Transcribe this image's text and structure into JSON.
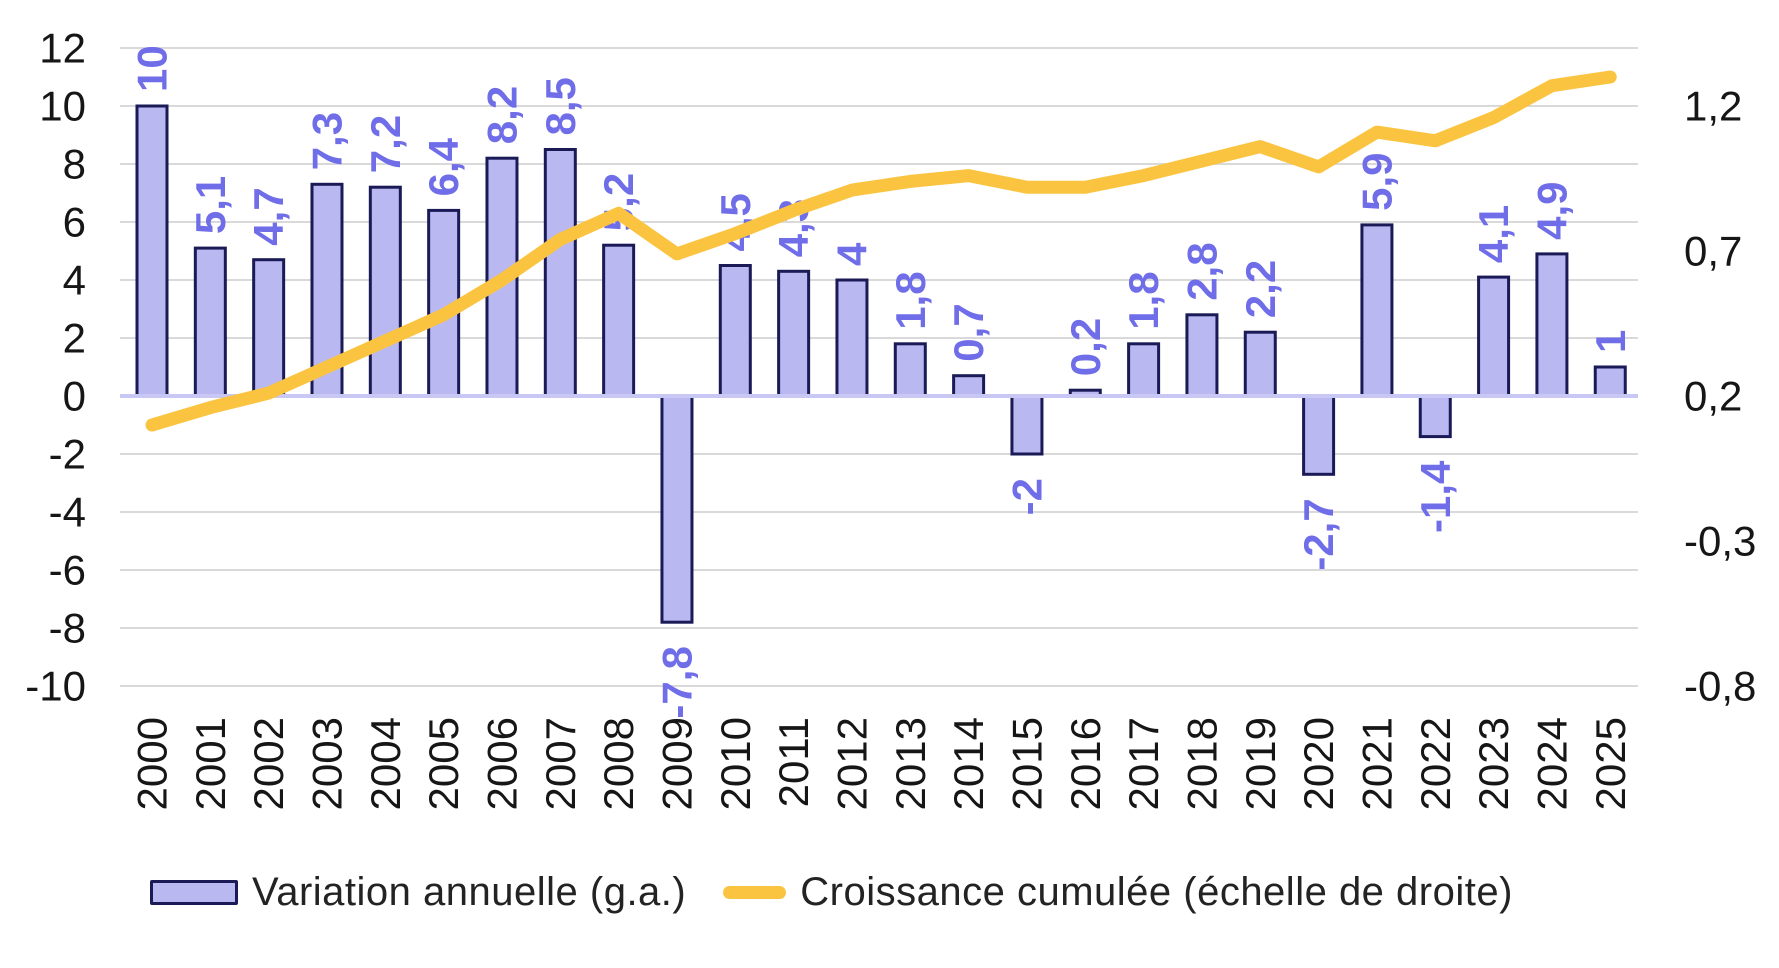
{
  "chart_data": {
    "type": "bar",
    "subtype": "combo-bar-line-dual-axis",
    "categories": [
      "2000",
      "2001",
      "2002",
      "2003",
      "2004",
      "2005",
      "2006",
      "2007",
      "2008",
      "2009",
      "2010",
      "2011",
      "2012",
      "2013",
      "2014",
      "2015",
      "2016",
      "2017",
      "2018",
      "2019",
      "2020",
      "2021",
      "2022",
      "2023",
      "2024",
      "2025"
    ],
    "series": [
      {
        "name": "Variation annuelle (g.a.)",
        "type": "bar",
        "axis": "left",
        "values": [
          10,
          5.1,
          4.7,
          7.3,
          7.2,
          6.4,
          8.2,
          8.5,
          5.2,
          -7.8,
          4.5,
          4.3,
          4,
          1.8,
          0.7,
          -2,
          0.2,
          1.8,
          2.8,
          2.2,
          -2.7,
          5.9,
          -1.4,
          4.1,
          4.9,
          1
        ],
        "labels": [
          "10",
          "5,1",
          "4,7",
          "7,3",
          "7,2",
          "6,4",
          "8,2",
          "8,5",
          "5,2",
          "-7,8",
          "4,5",
          "4,3",
          "4",
          "1,8",
          "0,7",
          "-2",
          "0,2",
          "1,8",
          "2,8",
          "2,2",
          "-2,7",
          "5,9",
          "-1,4",
          "4,1",
          "4,9",
          "1"
        ]
      },
      {
        "name": "Croissance cumulée (échelle de droite)",
        "type": "line",
        "axis": "right",
        "values": [
          0.1,
          0.16,
          0.21,
          0.3,
          0.39,
          0.48,
          0.6,
          0.74,
          0.83,
          0.69,
          0.76,
          0.84,
          0.91,
          0.94,
          0.96,
          0.92,
          0.92,
          0.96,
          1.01,
          1.06,
          0.99,
          1.11,
          1.08,
          1.16,
          1.27,
          1.3
        ]
      }
    ],
    "title": "",
    "xlabel": "",
    "ylabel": "",
    "left_axis": {
      "range": [
        -10,
        12
      ],
      "ticks": [
        12,
        10,
        8,
        6,
        4,
        2,
        0,
        -2,
        -4,
        -6,
        -8,
        -10
      ],
      "labels": [
        "12",
        "10",
        "8",
        "6",
        "4",
        "2",
        "0",
        "-2",
        "-4",
        "-6",
        "-8",
        "-10"
      ]
    },
    "right_axis": {
      "ticks": [
        1.2,
        0.7,
        0.2,
        -0.3,
        -0.8
      ],
      "labels": [
        "1,2",
        "0,7",
        "0,2",
        "-0,3",
        "-0,8"
      ]
    },
    "grid": true,
    "legend_position": "bottom",
    "data_label_rotation": -90,
    "x_tick_rotation": -90
  },
  "legend": {
    "items": [
      {
        "label": "Variation annuelle (g.a.)",
        "swatch": "bar"
      },
      {
        "label": "Croissance cumulée (échelle de droite)",
        "swatch": "line"
      }
    ]
  },
  "colors": {
    "background": "#ffffff",
    "bar_fill": "#b9b8f0",
    "bar_border": "#1a1a56",
    "line": "#fbc440",
    "data_label": "#6f6de8",
    "gridline": "#d9d9d9",
    "zero_line": "#c9c7f3",
    "axis_text": "#161616",
    "legend_text": "#232323"
  }
}
